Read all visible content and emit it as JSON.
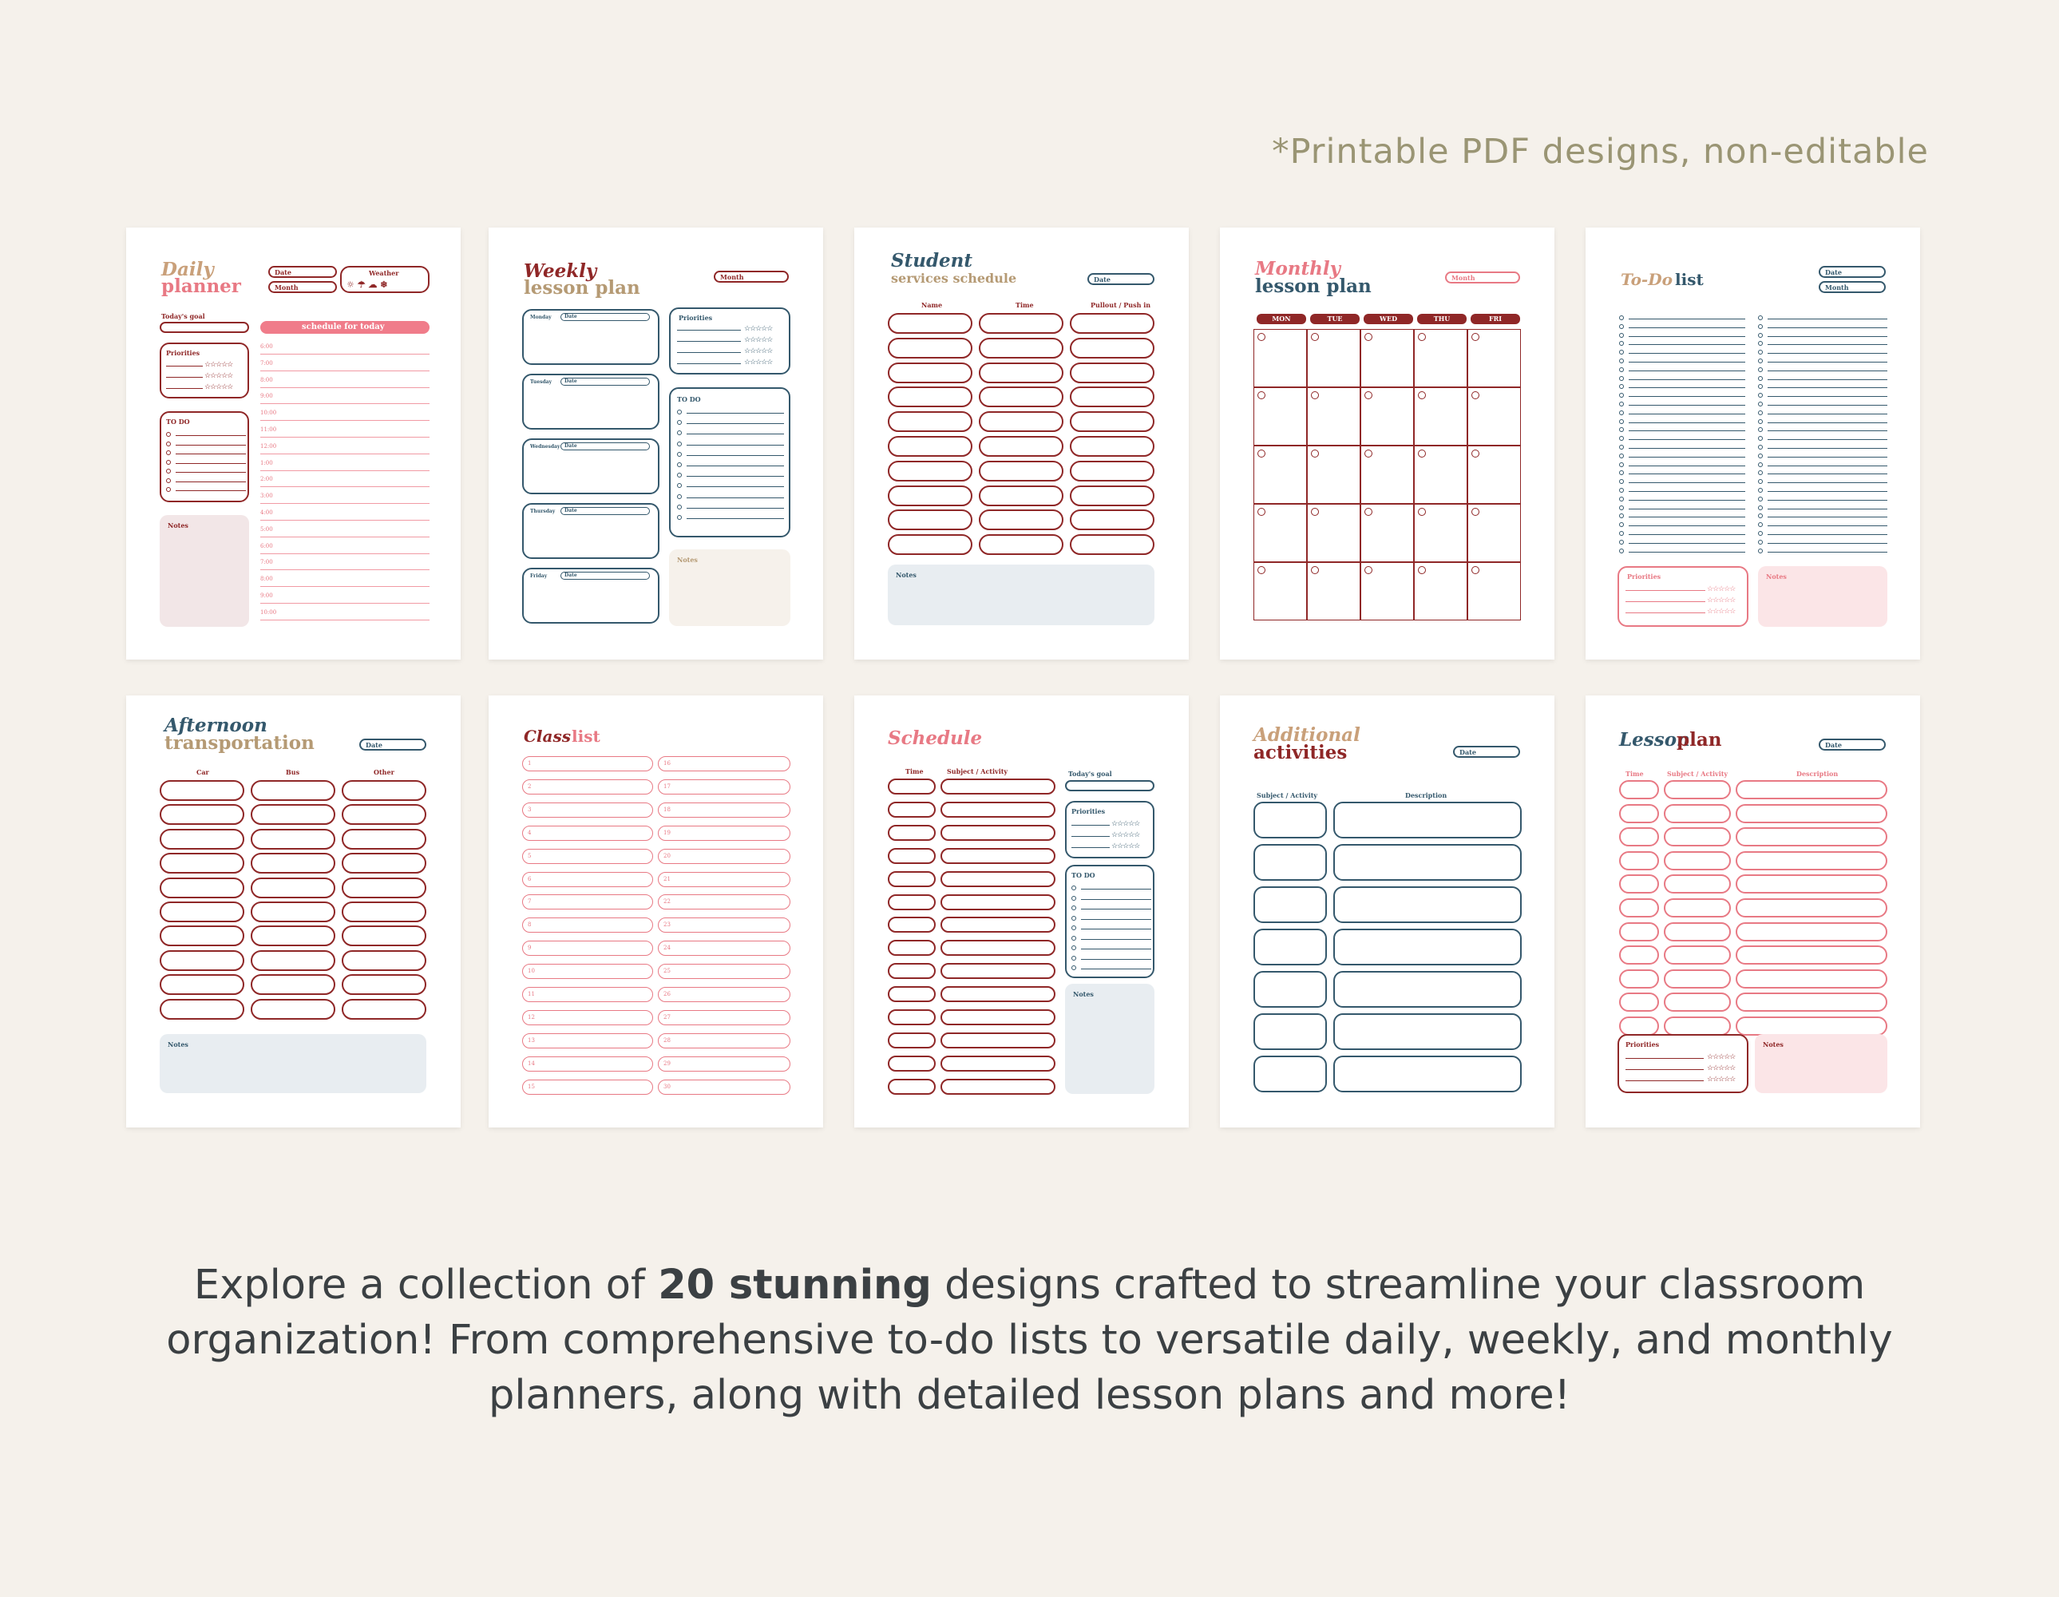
{
  "note": "*Printable PDF designs, non-editable",
  "description": {
    "part1": "Explore a collection of ",
    "bold": "20 stunning",
    "part2": " designs crafted to streamline your classroom organization! From comprehensive to-do lists to versatile daily, weekly, and monthly planners, along with detailed lesson plans and more!"
  },
  "colors": {
    "background": "#f5f1eb",
    "maroon": "#8f2727",
    "pink": "#e87984",
    "tan": "#b59a74",
    "teal": "#34586c",
    "light_blue": "#e8edf1",
    "light_pink": "#fbe5e7",
    "light_rose": "#f2e6e7",
    "beige": "#f6f1eb"
  },
  "pages": {
    "daily": {
      "title1": "Daily",
      "title2": "planner",
      "date": "Date",
      "month": "Month",
      "weather": "Weather",
      "weather_icons": "☼ ☂ ☁ ❄",
      "goal": "Today's goal",
      "schedule": "schedule for today",
      "priorities": "Priorities",
      "todo": "TO DO",
      "notes": "Notes",
      "times": [
        "6:00",
        "7:00",
        "8:00",
        "9:00",
        "10:00",
        "11:00",
        "12:00",
        "1:00",
        "2:00",
        "3:00",
        "4:00",
        "5:00",
        "6:00",
        "7:00",
        "8:00",
        "9:00",
        "10:00"
      ]
    },
    "weekly": {
      "title1": "Weekly",
      "title2": "lesson plan",
      "month": "Month",
      "days": [
        "Monday",
        "Tuesday",
        "Wednesday",
        "Thursday",
        "Friday"
      ],
      "date": "Date",
      "priorities": "Priorities",
      "todo": "TO DO",
      "notes": "Notes"
    },
    "student": {
      "title1": "Student",
      "title2": "services schedule",
      "date": "Date",
      "cols": [
        "Name",
        "Time",
        "Pullout / Push in"
      ],
      "notes": "Notes"
    },
    "monthly": {
      "title1": "Monthly",
      "title2": "lesson plan",
      "month": "Month",
      "days": [
        "MON",
        "TUE",
        "WED",
        "THU",
        "FRI"
      ]
    },
    "todo": {
      "title1": "To-Do",
      "title2": "list",
      "date": "Date",
      "month": "Month",
      "priorities": "Priorities",
      "notes": "Notes"
    },
    "afternoon": {
      "title1": "Afternoon",
      "title2": "transportation",
      "date": "Date",
      "cols": [
        "Car",
        "Bus",
        "Other"
      ],
      "notes": "Notes"
    },
    "classlist": {
      "title1": "Class",
      "title2": "list",
      "left": [
        "1",
        "2",
        "3",
        "4",
        "5",
        "6",
        "7",
        "8",
        "9",
        "10",
        "11",
        "12",
        "13",
        "14",
        "15"
      ],
      "right": [
        "16",
        "17",
        "18",
        "19",
        "20",
        "21",
        "22",
        "23",
        "24",
        "25",
        "26",
        "27",
        "28",
        "29",
        "30"
      ]
    },
    "schedule": {
      "title1": "Schedule",
      "cols": [
        "Time",
        "Subject / Activity"
      ],
      "goal": "Today's goal",
      "priorities": "Priorities",
      "todo": "TO DO",
      "notes": "Notes"
    },
    "additional": {
      "title1": "Additional",
      "title2": "activities",
      "date": "Date",
      "cols": [
        "Subject / Activity",
        "Description"
      ]
    },
    "lesson": {
      "title1": "Lesson",
      "title2": "plan",
      "date": "Date",
      "cols": [
        "Time",
        "Subject / Activity",
        "Description"
      ],
      "priorities": "Priorities",
      "notes": "Notes"
    }
  }
}
